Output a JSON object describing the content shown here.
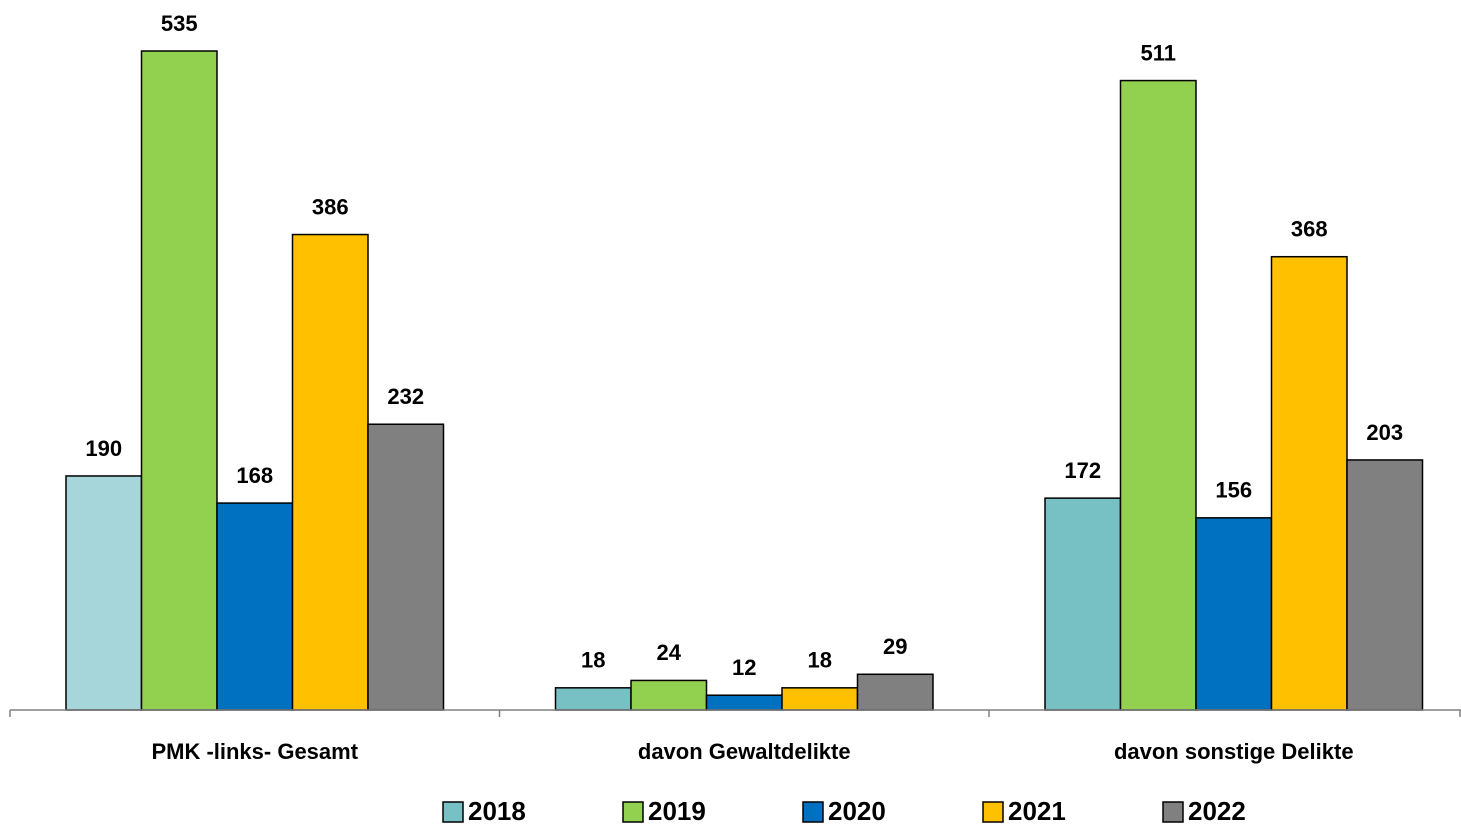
{
  "chart_data": {
    "type": "bar",
    "categories": [
      "PMK -links- Gesamt",
      "davon Gewaltdelikte",
      "davon sonstige Delikte"
    ],
    "series": [
      {
        "name": "2018",
        "color": "#77c1c4",
        "point_colors": [
          "#a6d6da",
          "#77c1c4",
          "#77c1c4"
        ],
        "values": [
          190,
          18,
          172
        ]
      },
      {
        "name": "2019",
        "color": "#92d050",
        "values": [
          535,
          24,
          511
        ]
      },
      {
        "name": "2020",
        "color": "#0070c0",
        "values": [
          168,
          12,
          156
        ]
      },
      {
        "name": "2021",
        "color": "#ffc000",
        "values": [
          386,
          18,
          368
        ]
      },
      {
        "name": "2022",
        "color": "#808080",
        "values": [
          232,
          29,
          203
        ]
      }
    ]
  }
}
